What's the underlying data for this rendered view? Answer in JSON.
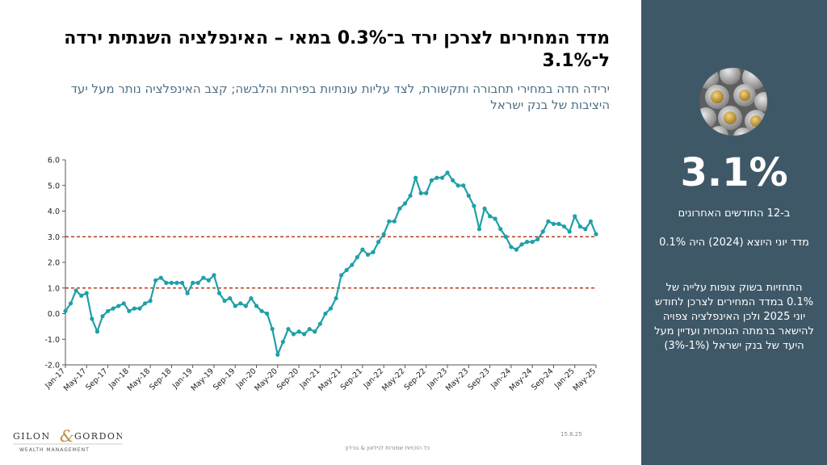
{
  "header": {
    "title": "מדד המחירים לצרכן ירד ב־0.3% במאי – האינפלציה השנתית ירדה ל־3.1%",
    "subtitle": "ירידה חדה במחירי תחבורה ותקשורת, לצד עליות עונתיות בפירות והלבשה; קצב האינפלציה נותר מעל יעד היציבות של בנק ישראל"
  },
  "sidebar": {
    "kpi_value": "3.1%",
    "kpi_caption": "ב-12 החודשים האחרונים",
    "june_index_text": "מדד יוני היוצא (2024) היה 0.1%",
    "forecast_text": "התחזיות בשוק צופות עלייה של 0.1% במדד המחירים לצרכן לחודש יוני 2025 ולכן האינפלציה צפויה להישאר ברמתה הנוכחית ועדיין מעל היעד של בנק ישראל (1%-3%)",
    "image_icon": "coins-photo-icon",
    "colors": {
      "background": "#3f5868",
      "text": "#ffffff"
    }
  },
  "footer": {
    "logo_text": "GILON & GORDON",
    "logo_ampersand": "&",
    "logo_left": "GILON",
    "logo_right": "GORDON",
    "logo_sub": "WEALTH MANAGEMENT",
    "date": "15.6.25",
    "copyright": "כל הזכויות שמורות לגילאון & גורדון"
  },
  "chart_data": {
    "type": "line",
    "title": "",
    "xlabel": "",
    "ylabel": "",
    "ylim": [
      -2.0,
      6.0
    ],
    "yticks": [
      "6.0",
      "5.0",
      "4.0",
      "3.0",
      "2.0",
      "1.0",
      "0.0",
      "-1.0",
      "-2.0"
    ],
    "x_tick_labels": [
      "Jan-17",
      "May-17",
      "Sep-17",
      "Jan-18",
      "May-18",
      "Sep-18",
      "Jan-19",
      "May-19",
      "Sep-19",
      "Jan-20",
      "May-20",
      "Sep-20",
      "Jan-21",
      "May-21",
      "Sep-21",
      "Jan-22",
      "May-22",
      "Sep-22",
      "Jan-23",
      "May-23",
      "Sep-23",
      "Jan-24",
      "May-24",
      "Sep-24",
      "Jan-25",
      "May-25"
    ],
    "x_start": "Jan-17",
    "x_end": "May-25",
    "grid": false,
    "legend": "none",
    "series": [
      {
        "color": "#1fa0a8",
        "values": [
          0.1,
          0.4,
          0.9,
          0.7,
          0.8,
          -0.2,
          -0.7,
          -0.1,
          0.1,
          0.2,
          0.3,
          0.4,
          0.1,
          0.2,
          0.2,
          0.4,
          0.5,
          1.3,
          1.4,
          1.2,
          1.2,
          1.2,
          1.2,
          0.8,
          1.2,
          1.2,
          1.4,
          1.3,
          1.5,
          0.8,
          0.5,
          0.6,
          0.3,
          0.4,
          0.3,
          0.6,
          0.3,
          0.1,
          0.0,
          -0.6,
          -1.6,
          -1.1,
          -0.6,
          -0.8,
          -0.7,
          -0.8,
          -0.6,
          -0.7,
          -0.4,
          0.0,
          0.2,
          0.6,
          1.5,
          1.7,
          1.9,
          2.2,
          2.5,
          2.3,
          2.4,
          2.8,
          3.1,
          3.6,
          3.6,
          4.1,
          4.3,
          4.6,
          5.3,
          4.7,
          4.7,
          5.2,
          5.3,
          5.3,
          5.5,
          5.2,
          5.0,
          5.0,
          4.6,
          4.2,
          3.3,
          4.1,
          3.8,
          3.7,
          3.3,
          3.0,
          2.6,
          2.5,
          2.7,
          2.8,
          2.8,
          2.9,
          3.2,
          3.6,
          3.5,
          3.5,
          3.4,
          3.2,
          3.8,
          3.4,
          3.3,
          3.6,
          3.1
        ]
      }
    ],
    "reference_lines": [
      {
        "y": 3.0,
        "color": "#b3401f",
        "style": "dashed"
      },
      {
        "y": 1.0,
        "color": "#b3401f",
        "style": "dashed"
      }
    ]
  }
}
